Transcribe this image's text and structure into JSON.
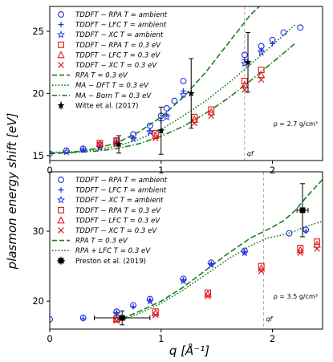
{
  "ylabel": "plasmon energy shift [eV]",
  "xlabel": "q [Å⁻¹]",
  "colors": {
    "rpa": "#1f2fe0",
    "rpa_03": "#e01919",
    "theory": "#1a7f1a",
    "experiment": "#000000",
    "qf_line": "#aaaaaa"
  },
  "chart_data": [
    {
      "type": "scatter",
      "panel": "top",
      "xlim": [
        0,
        2.45
      ],
      "ylim": [
        14.6,
        27.0
      ],
      "xticks": [
        0,
        1,
        2
      ],
      "xtick_labels": [
        "0",
        "1",
        "2"
      ],
      "yticks": [
        15,
        20,
        25
      ],
      "ytick_labels": [
        "15",
        "20",
        "25"
      ],
      "annotation": "ρ = 2.7 g/cm³",
      "qf_label": "qf",
      "qf": 1.75,
      "legend_position": "top-left",
      "series": [
        {
          "name": "TDDFT − RPA T = ambient",
          "marker": "circle",
          "color": "#1f2fe0",
          "x": [
            0.0,
            0.15,
            0.3,
            0.45,
            0.6,
            0.75,
            0.9,
            1.0,
            1.05,
            1.12,
            1.2,
            1.75,
            1.9,
            2.0,
            2.1,
            2.25
          ],
          "y": [
            15.15,
            15.4,
            15.55,
            15.85,
            16.2,
            16.7,
            17.4,
            18.2,
            18.8,
            19.4,
            21.0,
            23.1,
            23.8,
            24.3,
            24.9,
            25.3
          ]
        },
        {
          "name": "TDDFT − LFC T = ambient",
          "marker": "plus",
          "color": "#1f2fe0",
          "x": [
            0.3,
            0.45,
            0.6,
            0.75,
            0.9,
            1.0,
            1.05,
            1.2,
            1.75,
            1.9,
            2.0
          ],
          "y": [
            15.45,
            15.7,
            16.0,
            16.4,
            17.0,
            17.8,
            18.3,
            20.2,
            22.7,
            23.5,
            24.0
          ]
        },
        {
          "name": "TDDFT − XC T = ambient",
          "marker": "star",
          "color": "#1f2fe0",
          "x": [
            0.15,
            0.3,
            0.45,
            0.6,
            0.75,
            0.9,
            1.05,
            1.2,
            1.75,
            1.9
          ],
          "y": [
            15.3,
            15.45,
            15.65,
            15.95,
            16.35,
            16.9,
            18.1,
            19.9,
            22.4,
            23.3
          ]
        },
        {
          "name": "TDDFT − RPA T = 0.3 eV",
          "marker": "square",
          "color": "#e01919",
          "x": [
            0.45,
            0.6,
            0.95,
            1.3,
            1.45,
            1.75,
            1.9
          ],
          "y": [
            16.0,
            16.2,
            16.8,
            18.1,
            18.7,
            21.0,
            21.9
          ]
        },
        {
          "name": "TDDFT − LFC T = 0.3 eV",
          "marker": "triangle",
          "color": "#e01919",
          "x": [
            0.45,
            0.6,
            0.95,
            1.3,
            1.45,
            1.75,
            1.9
          ],
          "y": [
            15.95,
            16.1,
            16.6,
            17.9,
            18.5,
            20.7,
            21.5
          ]
        },
        {
          "name": "TDDFT − XC T = 0.3 eV",
          "marker": "x",
          "color": "#e01919",
          "x": [
            0.45,
            0.6,
            0.95,
            1.3,
            1.45,
            1.75,
            1.9
          ],
          "y": [
            15.9,
            16.0,
            16.4,
            17.6,
            18.2,
            20.3,
            21.1
          ]
        },
        {
          "name": "RPA T = 0.3 eV",
          "line": "dashed",
          "color": "#1a7f1a",
          "x": [
            0.0,
            0.2,
            0.4,
            0.6,
            0.8,
            1.0,
            1.2,
            1.4,
            1.6,
            1.8,
            2.0,
            2.08
          ],
          "y": [
            15.15,
            15.25,
            15.55,
            16.0,
            16.9,
            18.1,
            19.7,
            21.7,
            24.0,
            26.3,
            28.0,
            28.6
          ]
        },
        {
          "name": "MA − DFT T = 0.3 eV",
          "line": "dotted",
          "color": "#1a7f1a",
          "x": [
            0.0,
            0.2,
            0.4,
            0.6,
            0.8,
            1.0,
            1.2,
            1.4,
            1.6,
            1.8,
            2.0,
            2.2
          ],
          "y": [
            15.25,
            15.3,
            15.45,
            15.75,
            16.3,
            17.1,
            18.2,
            19.4,
            20.8,
            22.3,
            23.9,
            25.5
          ]
        },
        {
          "name": "MA − Born T = 0.3 eV",
          "line": "dashdot",
          "color": "#1a7f1a",
          "x": [
            0.0,
            0.2,
            0.4,
            0.6,
            0.8,
            1.0,
            1.2,
            1.4,
            1.6,
            1.8,
            2.0,
            2.2
          ],
          "y": [
            15.2,
            15.25,
            15.35,
            15.55,
            15.95,
            16.55,
            17.35,
            18.4,
            19.6,
            21.0,
            22.5,
            24.0
          ]
        },
        {
          "name": "Witte et al. (2017)",
          "marker": "star-errorbar",
          "color": "#000000",
          "x": [
            0.62,
            1.0,
            1.27,
            1.78
          ],
          "y": [
            15.9,
            17.0,
            20.0,
            22.5
          ],
          "yerr": [
            0.7,
            1.9,
            2.8,
            2.4
          ]
        }
      ]
    },
    {
      "type": "scatter",
      "panel": "bottom",
      "xlim": [
        0,
        2.45
      ],
      "ylim": [
        16.0,
        38.5
      ],
      "xticks": [
        0,
        1,
        2
      ],
      "xtick_labels": [
        "0",
        "1",
        "2"
      ],
      "yticks": [
        20,
        30
      ],
      "ytick_labels": [
        "20",
        "30"
      ],
      "annotation": "ρ = 3.5 g/cm³",
      "qf_label": "qf",
      "qf": 1.92,
      "legend_position": "top-left",
      "series": [
        {
          "name": "TDDFT − RPA T = ambient",
          "marker": "circle",
          "color": "#1f2fe0",
          "x": [
            0.0,
            0.3,
            0.6,
            0.75,
            0.9,
            1.2,
            1.45,
            1.75,
            2.15,
            2.3
          ],
          "y": [
            17.4,
            17.6,
            18.5,
            19.4,
            20.3,
            23.2,
            25.5,
            27.2,
            29.7,
            30.2
          ]
        },
        {
          "name": "TDDFT − LFC T = ambient",
          "marker": "plus",
          "color": "#1f2fe0",
          "x": [
            0.3,
            0.6,
            0.75,
            0.9,
            1.2,
            1.45,
            1.75,
            2.3
          ],
          "y": [
            17.5,
            18.3,
            19.2,
            20.1,
            23.0,
            25.3,
            27.0,
            30.0
          ]
        },
        {
          "name": "TDDFT − XC T = ambient",
          "marker": "star",
          "color": "#1f2fe0",
          "x": [
            0.6,
            0.9,
            1.2,
            1.45,
            1.75
          ],
          "y": [
            18.2,
            20.0,
            22.9,
            25.2,
            26.9
          ]
        },
        {
          "name": "TDDFT − RPA T = 0.3 eV",
          "marker": "square",
          "color": "#e01919",
          "x": [
            0.6,
            0.95,
            1.42,
            1.9,
            2.25,
            2.4
          ],
          "y": [
            17.5,
            18.5,
            21.2,
            25.0,
            27.6,
            28.5
          ]
        },
        {
          "name": "TDDFT − LFC T = 0.3 eV",
          "marker": "triangle",
          "color": "#e01919",
          "x": [
            0.6,
            0.95,
            1.42,
            1.9,
            2.25,
            2.4
          ],
          "y": [
            17.4,
            18.3,
            21.0,
            24.7,
            27.3,
            28.1
          ]
        },
        {
          "name": "TDDFT − XC T = 0.3 eV",
          "marker": "x",
          "color": "#e01919",
          "x": [
            0.6,
            0.95,
            1.42,
            1.9,
            2.25,
            2.4
          ],
          "y": [
            17.2,
            18.0,
            20.7,
            24.3,
            26.9,
            27.5
          ]
        },
        {
          "name": "RPA T = 0.3 eV",
          "line": "dashed",
          "color": "#1a7f1a",
          "x": [
            0.65,
            0.8,
            1.0,
            1.2,
            1.4,
            1.6,
            1.8,
            2.0,
            2.1,
            2.2,
            2.3,
            2.45
          ],
          "y": [
            17.5,
            18.5,
            20.0,
            22.0,
            24.4,
            26.8,
            29.0,
            30.6,
            31.5,
            32.9,
            34.8,
            37.4
          ]
        },
        {
          "name": "RPA + LFC T = 0.3 eV",
          "line": "dotted",
          "color": "#1a7f1a",
          "x": [
            0.65,
            0.8,
            1.0,
            1.2,
            1.4,
            1.6,
            1.8,
            1.95,
            2.1,
            2.2,
            2.3,
            2.45
          ],
          "y": [
            17.3,
            18.2,
            19.7,
            21.6,
            23.8,
            26.0,
            27.9,
            29.0,
            29.5,
            30.0,
            30.7,
            31.4
          ]
        },
        {
          "name": "Preston et al. (2019)",
          "marker": "errorbar-box",
          "color": "#000000",
          "x": [
            0.65,
            2.27
          ],
          "y": [
            17.6,
            33.0
          ],
          "xerr": [
            0.25,
            0.05
          ],
          "yerr": [
            1.0,
            3.8
          ]
        }
      ]
    }
  ]
}
